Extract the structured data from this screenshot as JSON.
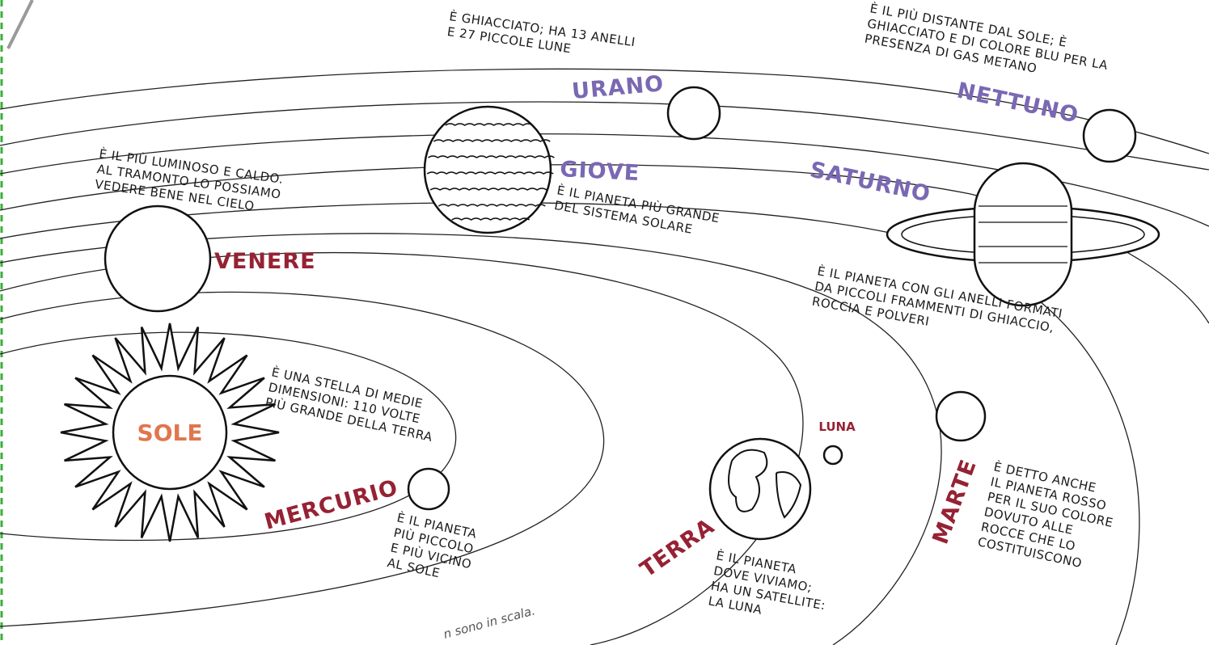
{
  "sun": {
    "name": "SOLE",
    "description": [
      "È UNA STELLA DI MEDIE",
      "DIMENSIONI: 110 VOLTE",
      "PIÙ GRANDE DELLA TERRA"
    ]
  },
  "planets": [
    {
      "name": "MERCURIO",
      "description": [
        "È IL PIANETA",
        "PIÙ PICCOLO",
        "E PIÙ VICINO",
        "AL SOLE"
      ]
    },
    {
      "name": "VENERE",
      "description": [
        "È IL PIÙ LUMINOSO E CALDO.",
        "AL TRAMONTO LO POSSIAMO",
        "VEDERE BENE NEL CIELO"
      ]
    },
    {
      "name": "TERRA",
      "description": [
        "È IL PIANETA",
        "DOVE VIVIAMO;",
        "HA UN SATELLITE:",
        "LA LUNA"
      ]
    },
    {
      "name": "MARTE",
      "description": [
        "È DETTO ANCHE",
        "IL PIANETA ROSSO",
        "PER IL SUO COLORE",
        "DOVUTO ALLE",
        "ROCCE CHE LO",
        "COSTITUISCONO"
      ]
    },
    {
      "name": "GIOVE",
      "description": [
        "È IL PIANETA PIÙ GRANDE",
        "DEL SISTEMA SOLARE"
      ]
    },
    {
      "name": "SATURNO",
      "description": [
        "È IL PIANETA CON GLI ANELLI FORMATI",
        "DA PICCOLI FRAMMENTI DI GHIACCIO,",
        "ROCCIA E POLVERI"
      ]
    },
    {
      "name": "URANO",
      "description": [
        "È GHIACCIATO; HA 13 ANELLI",
        "E 27 PICCOLE LUNE"
      ]
    },
    {
      "name": "NETTUNO",
      "description": [
        "È IL PIÙ DISTANTE DAL SOLE; È",
        "GHIACCIATO E DI COLORE BLU PER LA",
        "PRESENZA DI GAS METANO"
      ]
    }
  ],
  "moon": {
    "name": "LUNA"
  },
  "footnote": "n sono in scala."
}
